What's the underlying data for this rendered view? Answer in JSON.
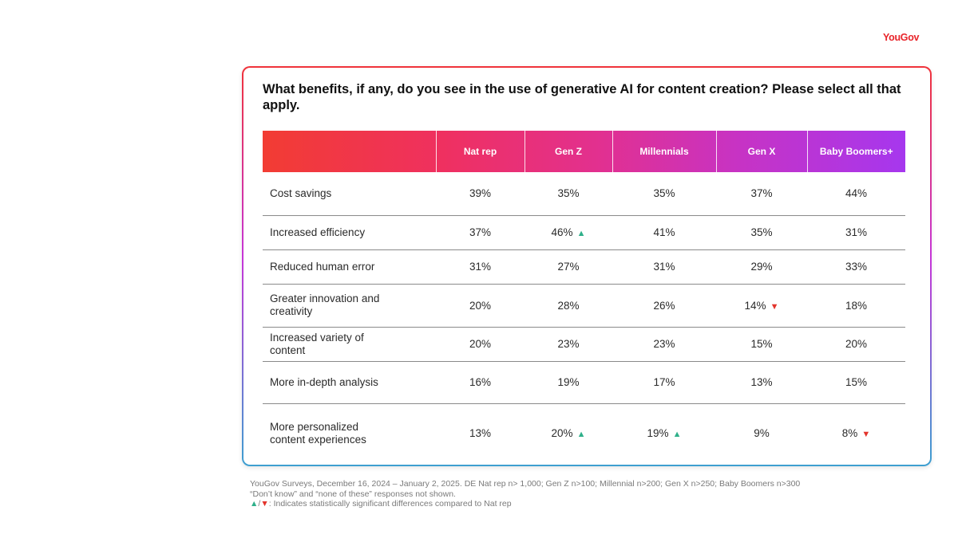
{
  "brand": {
    "logo_text": "YouGov"
  },
  "chart_data": {
    "type": "table",
    "title": "What benefits, if any, do you see in the use of generative AI for content creation? Please select all that apply.",
    "columns": [
      "Nat rep",
      "Gen Z",
      "Millennials",
      "Gen X",
      "Baby Boomers+"
    ],
    "rows": [
      {
        "label": "Cost savings",
        "values": [
          "39%",
          "35%",
          "35%",
          "37%",
          "44%"
        ],
        "flags": [
          "",
          "",
          "",
          "",
          ""
        ]
      },
      {
        "label": "Increased efficiency",
        "values": [
          "37%",
          "46%",
          "41%",
          "35%",
          "31%"
        ],
        "flags": [
          "",
          "up",
          "",
          "",
          ""
        ]
      },
      {
        "label": "Reduced human error",
        "values": [
          "31%",
          "27%",
          "31%",
          "29%",
          "33%"
        ],
        "flags": [
          "",
          "",
          "",
          "",
          ""
        ]
      },
      {
        "label": "Greater innovation and creativity",
        "values": [
          "20%",
          "28%",
          "26%",
          "14%",
          "18%"
        ],
        "flags": [
          "",
          "",
          "",
          "down",
          ""
        ]
      },
      {
        "label": "Increased variety of content",
        "values": [
          "20%",
          "23%",
          "23%",
          "15%",
          "20%"
        ],
        "flags": [
          "",
          "",
          "",
          "",
          ""
        ]
      },
      {
        "label": "More in-depth analysis",
        "values": [
          "16%",
          "19%",
          "17%",
          "13%",
          "15%"
        ],
        "flags": [
          "",
          "",
          "",
          "",
          ""
        ]
      },
      {
        "label": "More personalized content experiences",
        "values": [
          "13%",
          "20%",
          "19%",
          "9%",
          "8%"
        ],
        "flags": [
          "",
          "up",
          "up",
          "",
          "down"
        ]
      }
    ],
    "colors": {
      "up": "#2fb08a",
      "down": "#e3342c"
    }
  },
  "footnotes": {
    "source": "YouGov Surveys, December 16, 2024 – January 2, 2025. DE Nat rep n> 1,000; Gen Z n>100; Millennial n>200; Gen X n>250; Baby Boomers n>300",
    "exclusions": "“Don’t know” and “none of these” responses not shown.",
    "legend_up": "▲",
    "legend_sep": "/",
    "legend_down": "▼",
    "legend_text": ": Indicates statistically significant differences compared to Nat rep"
  }
}
